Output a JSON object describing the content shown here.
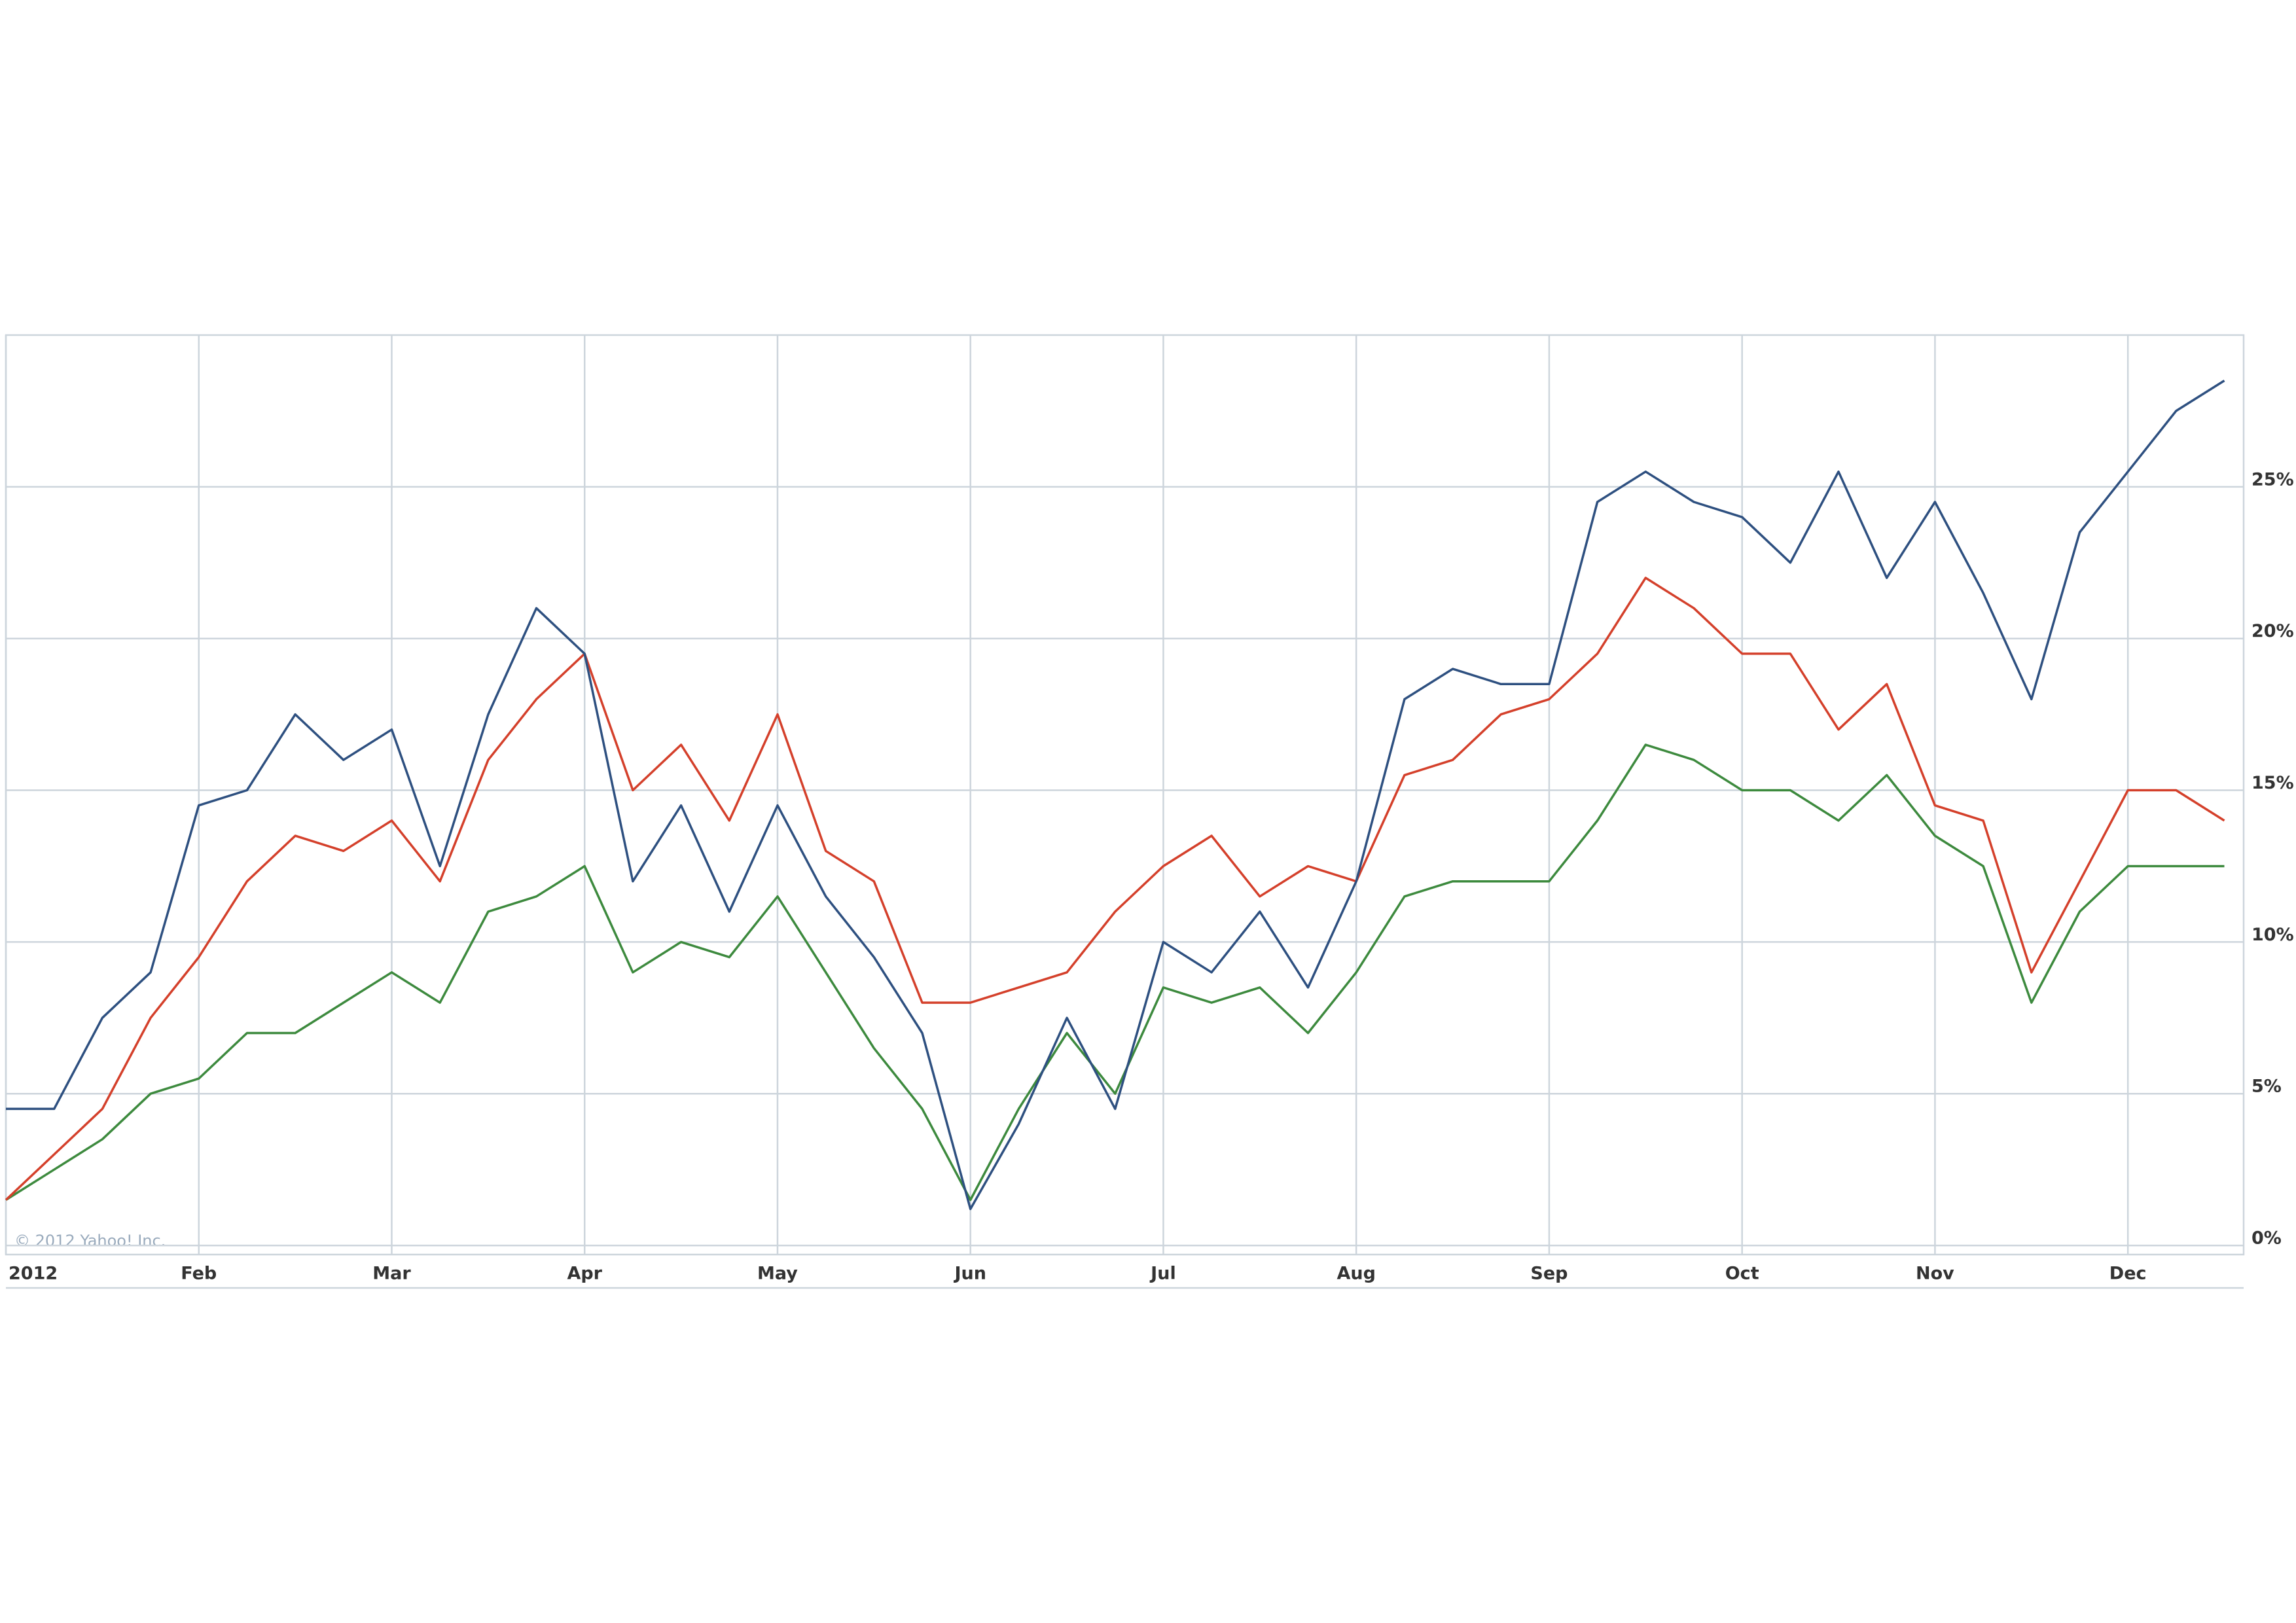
{
  "chart_data": {
    "type": "line",
    "annotation": "© 2012 Yahoo! Inc.",
    "x": [
      0,
      0.25,
      0.5,
      0.75,
      1,
      1.25,
      1.5,
      1.75,
      2,
      2.25,
      2.5,
      2.75,
      3,
      3.25,
      3.5,
      3.75,
      4,
      4.25,
      4.5,
      4.75,
      5,
      5.25,
      5.5,
      5.75,
      6,
      6.25,
      6.5,
      6.75,
      7,
      7.25,
      7.5,
      7.75,
      8,
      8.25,
      8.5,
      8.75,
      9,
      9.25,
      9.5,
      9.75,
      10,
      10.25,
      10.5,
      10.75,
      11,
      11.25,
      11.5
    ],
    "series": [
      {
        "color": "#2e5080",
        "values": [
          4.5,
          4.5,
          7.5,
          9,
          14.5,
          15,
          17.5,
          16,
          17,
          12.5,
          17.5,
          21,
          19.5,
          12,
          14.5,
          11,
          14.5,
          11.5,
          9.5,
          7,
          1.2,
          4,
          7.5,
          4.5,
          10,
          9,
          11,
          8.5,
          12,
          18,
          19,
          18.5,
          18.5,
          24.5,
          25.5,
          24.5,
          24,
          22.5,
          25.5,
          22,
          24.5,
          21.5,
          18,
          23.5,
          25.5,
          27.5,
          28.5
        ]
      },
      {
        "color": "#d4402b",
        "values": [
          1.5,
          3,
          4.5,
          7.5,
          9.5,
          12,
          13.5,
          13,
          14,
          12,
          16,
          18,
          19.5,
          15,
          16.5,
          14,
          17.5,
          13,
          12,
          8,
          8,
          8.5,
          9,
          11,
          12.5,
          13.5,
          11.5,
          12.5,
          12,
          15.5,
          16,
          17.5,
          18,
          19.5,
          22,
          21,
          19.5,
          19.5,
          17,
          18.5,
          14.5,
          14,
          9,
          12,
          15,
          15,
          14
        ]
      },
      {
        "color": "#3d8a3e",
        "values": [
          1.5,
          2.5,
          3.5,
          5,
          5.5,
          7,
          7,
          8,
          9,
          8,
          11,
          11.5,
          12.5,
          9,
          10,
          9.5,
          11.5,
          9,
          6.5,
          4.5,
          1.5,
          4.5,
          7,
          5,
          8.5,
          8,
          8.5,
          7,
          9,
          11.5,
          12,
          12,
          12,
          14,
          16.5,
          16,
          15,
          15,
          14,
          15.5,
          13.5,
          12.5,
          8,
          11,
          12.5,
          12.5,
          12.5
        ]
      }
    ],
    "xlim": [
      0,
      11.6
    ],
    "xticks": [
      {
        "value": 0,
        "label": "2012"
      },
      {
        "value": 1,
        "label": "Feb"
      },
      {
        "value": 2,
        "label": "Mar"
      },
      {
        "value": 3,
        "label": "Apr"
      },
      {
        "value": 4,
        "label": "May"
      },
      {
        "value": 5,
        "label": "Jun"
      },
      {
        "value": 6,
        "label": "Jul"
      },
      {
        "value": 7,
        "label": "Aug"
      },
      {
        "value": 8,
        "label": "Sep"
      },
      {
        "value": 9,
        "label": "Oct"
      },
      {
        "value": 10,
        "label": "Nov"
      },
      {
        "value": 11,
        "label": "Dec"
      }
    ],
    "ylim": [
      -0.3,
      30
    ],
    "yticks": [
      {
        "value": 0,
        "label": "0%"
      },
      {
        "value": 5,
        "label": "5%"
      },
      {
        "value": 10,
        "label": "10%"
      },
      {
        "value": 15,
        "label": "15%"
      },
      {
        "value": 20,
        "label": "20%"
      },
      {
        "value": 25,
        "label": "25%"
      }
    ],
    "grid": true
  }
}
